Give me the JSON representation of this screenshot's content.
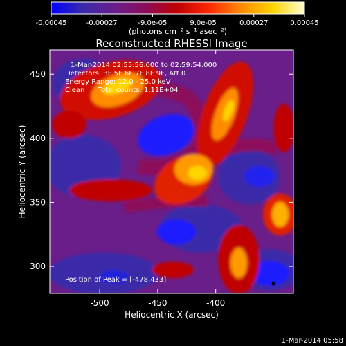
{
  "colorbar": {
    "tick_labels": [
      "-0.00045",
      "-0.00027",
      "-9.0e-05",
      "9.0e-05",
      "0.00027",
      "0.00045"
    ],
    "ticks": [
      -0.00045,
      -0.00027,
      -9e-05,
      9e-05,
      0.00027,
      0.00045
    ],
    "range": [
      -0.00045,
      0.00045
    ],
    "units": "(photons cm⁻² s⁻¹ asec⁻²)",
    "colormap": [
      "#0000ff",
      "#3a2aa8",
      "#6a1e8a",
      "#8c0c5a",
      "#c00000",
      "#ff2800",
      "#ff8c00",
      "#ffd400",
      "#ffffd0"
    ]
  },
  "plot": {
    "title": "Reconstructed RHESSI Image",
    "info_lines": [
      "1-Mar-2014 02:55:56.000 to 02:59:54.000",
      "Detectors: 3F 5F 6F 7F 8F 9F, Att 0",
      "Energy Range: 12.0 - 25.0 keV",
      "Clean      Total counts: 1.11E+04"
    ],
    "peak_label": "Position of Peak = [-478,433]",
    "peak_position": [
      -478,
      433
    ],
    "xlabel": "Heliocentric X (arcsec)",
    "ylabel": "Heliocentric Y (arcsec)",
    "xlim": [
      -543,
      -333
    ],
    "ylim": [
      279,
      469
    ],
    "x_ticks": [
      -500,
      -450,
      -400
    ],
    "x_tick_labels": [
      "-500",
      "-450",
      "-400"
    ],
    "y_ticks": [
      300,
      350,
      400,
      450
    ],
    "y_tick_labels": [
      "300",
      "350",
      "400",
      "450"
    ]
  },
  "footer": {
    "timestamp": "1-Mar-2014 05:58"
  }
}
